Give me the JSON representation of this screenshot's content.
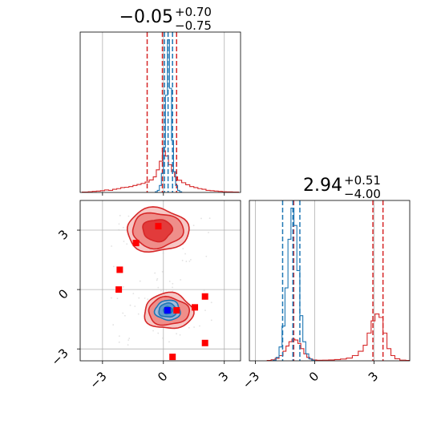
{
  "chart_data": [
    {
      "type": "histogram",
      "panel": "marginal-param-1",
      "title": {
        "median": "−0.05",
        "upper": "+0.70",
        "lower": "−0.75"
      },
      "xlim": [
        -4.1,
        3.8
      ],
      "xticks": [
        -3,
        0,
        3
      ],
      "grid": true,
      "series": [
        {
          "color": "#d62728",
          "bins": [
            [
              -4.0,
              0.002
            ],
            [
              -3.7,
              0.004
            ],
            [
              -3.5,
              0.006
            ],
            [
              -3.3,
              0.008
            ],
            [
              -3.1,
              0.01
            ],
            [
              -2.9,
              0.014
            ],
            [
              -2.7,
              0.012
            ],
            [
              -2.5,
              0.018
            ],
            [
              -2.3,
              0.022
            ],
            [
              -2.1,
              0.028
            ],
            [
              -1.9,
              0.03
            ],
            [
              -1.7,
              0.034
            ],
            [
              -1.5,
              0.04
            ],
            [
              -1.3,
              0.046
            ],
            [
              -1.1,
              0.052
            ],
            [
              -0.9,
              0.06
            ],
            [
              -0.7,
              0.072
            ],
            [
              -0.5,
              0.09
            ],
            [
              -0.35,
              0.13
            ],
            [
              -0.2,
              0.18
            ],
            [
              -0.05,
              0.24
            ],
            [
              0.1,
              0.21
            ],
            [
              0.25,
              0.16
            ],
            [
              0.4,
              0.12
            ],
            [
              0.55,
              0.09
            ],
            [
              0.7,
              0.07
            ],
            [
              0.9,
              0.056
            ],
            [
              1.1,
              0.044
            ],
            [
              1.3,
              0.034
            ],
            [
              1.5,
              0.028
            ],
            [
              1.7,
              0.022
            ],
            [
              1.9,
              0.018
            ],
            [
              2.1,
              0.012
            ],
            [
              2.3,
              0.01
            ],
            [
              2.5,
              0.008
            ],
            [
              2.7,
              0.006
            ],
            [
              2.9,
              0.004
            ],
            [
              3.1,
              0.003
            ],
            [
              3.4,
              0.002
            ]
          ],
          "quantiles": [
            -0.8,
            -0.05,
            0.65
          ]
        },
        {
          "color": "#1f77b4",
          "bins": [
            [
              -0.4,
              0.004
            ],
            [
              -0.3,
              0.012
            ],
            [
              -0.2,
              0.04
            ],
            [
              -0.1,
              0.11
            ],
            [
              0.0,
              0.26
            ],
            [
              0.1,
              0.56
            ],
            [
              0.2,
              0.88
            ],
            [
              0.3,
              0.6
            ],
            [
              0.4,
              0.3
            ],
            [
              0.5,
              0.12
            ],
            [
              0.6,
              0.04
            ],
            [
              0.7,
              0.012
            ],
            [
              0.8,
              0.004
            ]
          ],
          "quantiles": [
            0.05,
            0.23,
            0.45
          ]
        }
      ]
    },
    {
      "type": "histogram",
      "panel": "marginal-param-2",
      "title": {
        "median": "2.94",
        "upper": "+0.51",
        "lower": "−4.00"
      },
      "xlim": [
        -3.3,
        4.8
      ],
      "xticks": [
        -3,
        0,
        3
      ],
      "grid": true,
      "series": [
        {
          "color": "#d62728",
          "bins": [
            [
              -2.4,
              0.002
            ],
            [
              -2.2,
              0.006
            ],
            [
              -2.0,
              0.014
            ],
            [
              -1.8,
              0.03
            ],
            [
              -1.6,
              0.055
            ],
            [
              -1.45,
              0.085
            ],
            [
              -1.3,
              0.11
            ],
            [
              -1.15,
              0.125
            ],
            [
              -1.0,
              0.12
            ],
            [
              -0.85,
              0.1
            ],
            [
              -0.7,
              0.07
            ],
            [
              -0.55,
              0.04
            ],
            [
              -0.4,
              0.02
            ],
            [
              -0.25,
              0.01
            ],
            [
              -0.1,
              0.005
            ],
            [
              0.1,
              0.003
            ],
            [
              0.4,
              0.004
            ],
            [
              0.7,
              0.005
            ],
            [
              1.0,
              0.007
            ],
            [
              1.3,
              0.01
            ],
            [
              1.6,
              0.016
            ],
            [
              1.9,
              0.03
            ],
            [
              2.2,
              0.055
            ],
            [
              2.45,
              0.09
            ],
            [
              2.65,
              0.16
            ],
            [
              2.85,
              0.23
            ],
            [
              3.05,
              0.27
            ],
            [
              3.25,
              0.25
            ],
            [
              3.45,
              0.16
            ],
            [
              3.65,
              0.07
            ],
            [
              3.85,
              0.03
            ],
            [
              4.05,
              0.012
            ],
            [
              4.3,
              0.004
            ],
            [
              4.6,
              0.002
            ]
          ],
          "quantiles": [
            -1.06,
            2.94,
            3.45
          ]
        },
        {
          "color": "#1f77b4",
          "bins": [
            [
              -2.1,
              0.004
            ],
            [
              -1.95,
              0.02
            ],
            [
              -1.8,
              0.08
            ],
            [
              -1.65,
              0.2
            ],
            [
              -1.5,
              0.42
            ],
            [
              -1.35,
              0.7
            ],
            [
              -1.2,
              0.88
            ],
            [
              -1.05,
              0.78
            ],
            [
              -0.9,
              0.52
            ],
            [
              -0.75,
              0.26
            ],
            [
              -0.6,
              0.11
            ],
            [
              -0.45,
              0.04
            ],
            [
              -0.3,
              0.012
            ],
            [
              -0.15,
              0.004
            ]
          ],
          "quantiles": [
            -1.62,
            -1.1,
            -0.75
          ]
        }
      ]
    },
    {
      "type": "scatter",
      "panel": "joint-param-1-vs-param-2",
      "xlim": [
        -4.1,
        3.8
      ],
      "ylim": [
        -3.6,
        4.5
      ],
      "xticks": [
        -3,
        0,
        3
      ],
      "yticks": [
        -3,
        0,
        3
      ],
      "grid": true,
      "series": [
        {
          "marker": "square",
          "color": "#ff0000",
          "points": [
            [
              -1.35,
              2.35
            ],
            [
              -0.25,
              3.2
            ],
            [
              -2.15,
              1.0
            ],
            [
              -2.2,
              0.0
            ],
            [
              2.05,
              -0.35
            ],
            [
              1.55,
              -0.9
            ],
            [
              0.65,
              -1.05
            ],
            [
              2.05,
              -2.7
            ],
            [
              0.45,
              -3.4
            ]
          ]
        },
        {
          "marker": "square",
          "color": "#0000ff",
          "points": [
            [
              0.2,
              -1.05
            ]
          ]
        }
      ],
      "contours": [
        {
          "color": "#d62728",
          "center": [
            -0.3,
            3.0
          ],
          "rx": [
            0.72,
            1.25,
            1.52
          ],
          "ry": [
            0.55,
            0.88,
            1.1
          ]
        },
        {
          "color": "#d62728",
          "center": [
            0.25,
            -1.1
          ],
          "rx": [
            0.55,
            1.0,
            1.2
          ],
          "ry": [
            0.38,
            0.7,
            0.9
          ]
        },
        {
          "color": "#1f77b4",
          "center": [
            0.22,
            -1.05
          ],
          "rx": [
            0.22,
            0.45,
            0.62
          ],
          "ry": [
            0.18,
            0.35,
            0.5
          ]
        }
      ]
    }
  ]
}
